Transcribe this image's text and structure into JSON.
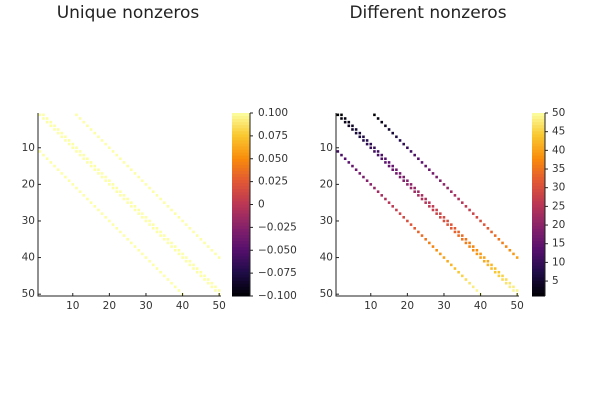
{
  "chart_data": [
    {
      "type": "heatmap",
      "title": "Unique nonzeros",
      "matrix_size": 50,
      "diagonal_offsets": [
        0,
        1,
        10,
        -10
      ],
      "value_mode": "constant",
      "constant_value": 0.1,
      "x_ticks": [
        "10",
        "20",
        "30",
        "40",
        "50"
      ],
      "y_ticks": [
        "10",
        "20",
        "30",
        "40",
        "50"
      ],
      "colorbar_ticks": [
        "0.100",
        "0.075",
        "0.050",
        "0.025",
        "0",
        "−0.025",
        "−0.050",
        "−0.075",
        "−0.100"
      ],
      "clim": [
        -0.1,
        0.1
      ],
      "colormap": "inferno"
    },
    {
      "type": "heatmap",
      "title": "Different nonzeros",
      "matrix_size": 50,
      "diagonal_offsets": [
        0,
        1,
        10,
        -10
      ],
      "value_mode": "row_index",
      "x_ticks": [
        "10",
        "20",
        "30",
        "40",
        "50"
      ],
      "y_ticks": [
        "10",
        "20",
        "30",
        "40",
        "50"
      ],
      "colorbar_ticks": [
        "50",
        "45",
        "40",
        "35",
        "30",
        "25",
        "20",
        "15",
        "10",
        "5"
      ],
      "clim": [
        1,
        50
      ],
      "colormap": "inferno"
    }
  ]
}
